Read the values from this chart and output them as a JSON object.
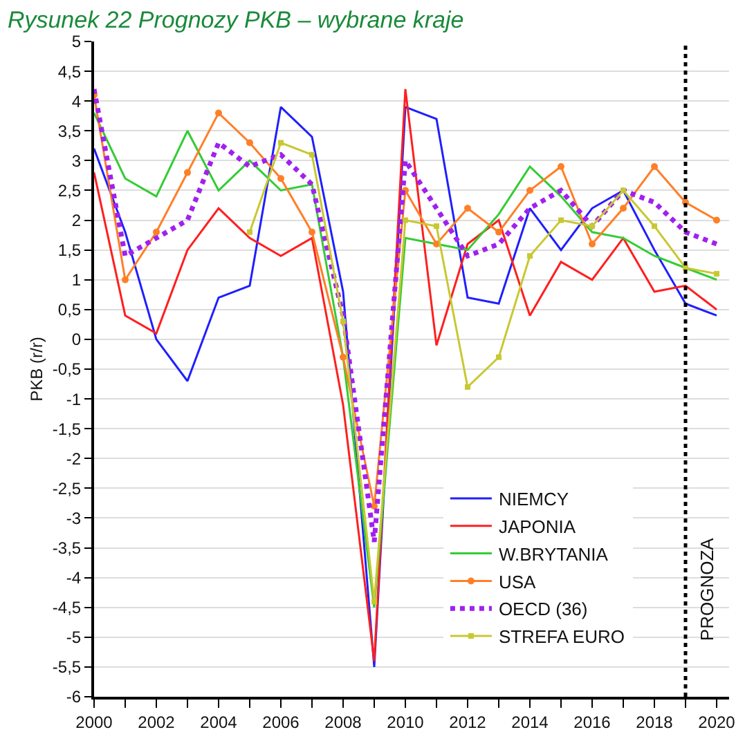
{
  "chart_data": {
    "type": "line",
    "title": "Rysunek 22 Prognozy PKB – wybrane kraje",
    "ylabel": "PKB (r/r)",
    "x": [
      2000,
      2001,
      2002,
      2003,
      2004,
      2005,
      2006,
      2007,
      2008,
      2009,
      2010,
      2011,
      2012,
      2013,
      2014,
      2015,
      2016,
      2017,
      2018,
      2019,
      2020
    ],
    "series": [
      {
        "name": "NIEMCY",
        "color": "#1f1fff",
        "marker": "none",
        "line_style": "solid",
        "values": [
          3.2,
          1.8,
          0.0,
          -0.7,
          0.7,
          0.9,
          3.9,
          3.4,
          0.8,
          -5.5,
          3.9,
          3.7,
          0.7,
          0.6,
          2.2,
          1.5,
          2.2,
          2.5,
          1.5,
          0.6,
          0.4
        ]
      },
      {
        "name": "JAPONIA",
        "color": "#ff1f1f",
        "marker": "none",
        "line_style": "solid",
        "values": [
          2.8,
          0.4,
          0.1,
          1.5,
          2.2,
          1.7,
          1.4,
          1.7,
          -1.1,
          -5.4,
          4.2,
          -0.1,
          1.6,
          2.0,
          0.4,
          1.3,
          1.0,
          1.7,
          0.8,
          0.9,
          0.5
        ]
      },
      {
        "name": "W.BRYTANIA",
        "color": "#33cc33",
        "marker": "none",
        "line_style": "solid",
        "values": [
          3.8,
          2.7,
          2.4,
          3.5,
          2.5,
          3.0,
          2.5,
          2.6,
          -0.3,
          -4.5,
          1.7,
          1.6,
          1.5,
          2.1,
          2.9,
          2.4,
          1.8,
          1.7,
          1.4,
          1.2,
          1.0
        ]
      },
      {
        "name": "USA",
        "color": "#ff7f27",
        "marker": "circle",
        "line_style": "solid",
        "values": [
          4.1,
          1.0,
          1.8,
          2.8,
          3.8,
          3.3,
          2.7,
          1.8,
          -0.3,
          -2.8,
          2.5,
          1.6,
          2.2,
          1.8,
          2.5,
          2.9,
          1.6,
          2.2,
          2.9,
          2.3,
          2.0
        ]
      },
      {
        "name": "OECD (36)",
        "color": "#a020f0",
        "marker": "none",
        "line_style": "dotted",
        "values": [
          4.2,
          1.4,
          1.7,
          2.0,
          3.3,
          2.9,
          3.1,
          2.6,
          0.4,
          -3.4,
          3.0,
          2.2,
          1.4,
          1.6,
          2.2,
          2.5,
          1.9,
          2.5,
          2.3,
          1.8,
          1.6
        ]
      },
      {
        "name": "STREFA EURO",
        "color": "#c8c832",
        "marker": "square",
        "line_style": "solid",
        "values": [
          null,
          null,
          null,
          null,
          null,
          1.8,
          3.3,
          3.1,
          0.3,
          -4.4,
          2.0,
          1.9,
          -0.8,
          -0.3,
          1.4,
          2.0,
          1.9,
          2.5,
          1.9,
          1.2,
          1.1
        ]
      }
    ],
    "xlim": [
      2000,
      2020.4
    ],
    "xticks": [
      2000,
      {
        "value": 2001,
        "label": null
      },
      2002,
      {
        "value": 2003,
        "label": null
      },
      2004,
      {
        "value": 2005,
        "label": null
      },
      2006,
      {
        "value": 2007,
        "label": null
      },
      2008,
      {
        "value": 2009,
        "label": null
      },
      2010,
      {
        "value": 2011,
        "label": null
      },
      2012,
      {
        "value": 2013,
        "label": null
      },
      2014,
      {
        "value": 2015,
        "label": null
      },
      2016,
      {
        "value": 2017,
        "label": null
      },
      2018,
      {
        "value": 2019,
        "label": null
      },
      2020
    ],
    "ylim": [
      -6,
      5
    ],
    "yticks": [
      -6,
      {
        "value": -5.5,
        "label": "-5,5"
      },
      -5,
      {
        "value": -4.5,
        "label": "-4,5"
      },
      -4,
      {
        "value": -3.5,
        "label": "-3,5"
      },
      -3,
      {
        "value": -2.5,
        "label": "-2,5"
      },
      -2,
      {
        "value": -1.5,
        "label": "-1,5"
      },
      -1,
      {
        "value": -0.5,
        "label": "-0,5"
      },
      0,
      {
        "value": 0.5,
        "label": "0,5"
      },
      1,
      {
        "value": 1.5,
        "label": "1,5"
      },
      2,
      {
        "value": 2.5,
        "label": "2,5"
      },
      3,
      {
        "value": 3.5,
        "label": "3,5"
      },
      4,
      {
        "value": 4.5,
        "label": "4,5"
      },
      5
    ],
    "grid": "y",
    "legend": "bottom right",
    "ref_lines": [
      {
        "axis": "x",
        "value": 2019,
        "label": "PROGNOZA",
        "color": "#000000",
        "line_style": "dotted"
      }
    ]
  }
}
